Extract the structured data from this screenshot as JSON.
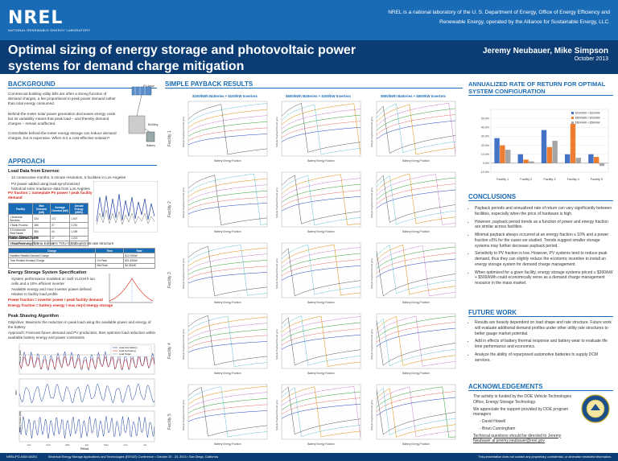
{
  "header": {
    "logo": "NREL",
    "logo_sub": "NATIONAL RENEWABLE ENERGY LABORATORY",
    "tagline": "NREL is a national laboratory of the U. S. Department of Energy, Office of Energy Efficiency and Renewable Energy, operated by the Alliance for Sustainable Energy, LLC.",
    "title": "Optimal sizing of energy storage and photovoltaic power systems for demand charge mitigation",
    "authors": "Jeremy Neubauer, Mike Simpson",
    "date": "October 2013"
  },
  "background": {
    "heading": "BACKGROUND",
    "p1": "Commercial building utility bills are often a strong function of demand charges, a fee proportional to peak power demand rather than total energy consumed.",
    "p2": "Behind-the-meter solar power generation decreases energy costs but its variability means that peak load – and thereby demand charges – remain unaffected.",
    "p3": "Controllable behind-the-meter energy storage can reduce demand charges, but is expensive. When is it a cost-effective solution?",
    "diagram_labels": [
      "PV Array",
      "Battery",
      "Building"
    ]
  },
  "approach": {
    "heading": "APPROACH",
    "load_data": "Load Data from Enernoc",
    "load_b1": "12 consecutive months, 5 minute resolution, 5 facilities in Los Angeles",
    "load_b2": "PV power added using load-synchronized historical solar irradiance data from Los Angeles",
    "pv_frac": "PV fraction = nameplate PV power / peak facility demand",
    "rate_structure": "Rate Structure",
    "rate_b1": "Southern California Edison's TOU-GS-2 option B rate structure",
    "storage_spec": "Energy Storage System Specification",
    "storage_b1": "System performance modeled on Saft VL41M li-ion cells and a 10% efficient inverter",
    "storage_b2": "Available energy and max inverter power defined relative to facility load profile",
    "power_frac": "Power fraction = inverter power / peak facility demand",
    "energy_frac": "Energy fraction = battery energy / max req'd energy storage",
    "peak_algo": "Peak Shaving Algorithm",
    "objective": "Objective: Maximize the reduction in peak load using the available power and energy of the battery",
    "approach_t": "Approach: Forecast future demand and PV production, then optimize load reduction within available battery energy and power constraints",
    "table_headers": [
      "Facility",
      "Max Demand (kW)",
      "Average Demand (kW)",
      "Annual Energy (MWh)"
    ],
    "table_rows": [
      [
        "1 Business Services",
        "334",
        "172",
        "1,507"
      ],
      [
        "2 Bank Process",
        "486",
        "37",
        "3,251"
      ],
      [
        "3 Commercial Real Estate",
        "584",
        "44",
        "1,439"
      ],
      [
        "4 Grocer/Market",
        "476",
        "17",
        "1,213"
      ],
      [
        "5 Food Processing",
        "174",
        "15",
        "1,013"
      ]
    ],
    "rate_table": [
      [
        "Charge",
        "Time",
        "Rate"
      ],
      [
        "Facilities Related Demand Charge",
        "",
        "$12.03/kW"
      ],
      [
        "Time Related Demand Charge",
        "On-Peak",
        "$21.62/kW"
      ],
      [
        "",
        "Mid-Peak",
        "$4.24/kW"
      ]
    ],
    "chart_legend": [
      "Load (w/o battery)",
      "Load (w/ battery)",
      "Load Target"
    ],
    "chart_ylabels": [
      "Power (kW)",
      "SOC",
      "Battery Power (kW)"
    ],
    "chart_xlabel": "Period",
    "chart_xticks": [
      "Jan",
      "Feb",
      "Mar",
      "Apr",
      "May",
      "Jun",
      "Jul"
    ]
  },
  "payback": {
    "heading": "SIMPLE PAYBACK RESULTS",
    "columns": [
      "$100/kWh Batteries + $100/kW Inverters",
      "$500/kWh Batteries + $100/kW Inverters",
      "$500/kWh Batteries + $500/kW Inverters"
    ],
    "rows": [
      "Facility 1",
      "Facility 2",
      "Facility 3",
      "Facility 4",
      "Facility 5"
    ],
    "xlabel": "Battery Energy Fraction",
    "ylabel": "Simple Payback Period (yrs)"
  },
  "annualized": {
    "heading": "ANNUALIZED RATE OF RETURN FOR OPTIMAL SYSTEM CONFIGURATION"
  },
  "conclusions": {
    "heading": "CONCLUSIONS",
    "items": [
      "Payback periods and annualized rate of return can vary significantly between facilities, especially when the price of hardware is high.",
      "However, payback period trends as a function of power and energy fraction are similar across facilities.",
      "Minimal payback always occurred at an energy fraction ≤ 10% and a power fraction ≤5% for the cases we studied. Trends suggest smaller storage systems may further decrease payback period.",
      "Sensitivity to PV fraction is low. However, PV systems tend to reduce peak demand, thus they can slightly reduce the economic incentive to install an energy storage system for demand charge management.",
      "When optimized for a given facility, energy storage systems priced ≤ $300/kW + $500/kWh could economically serve as a demand charge management resource in the mass market."
    ]
  },
  "future": {
    "heading": "FUTURE WORK",
    "items": [
      "Results are heavily dependent on load shape and rate structure. Future work will evaluate additional demand profiles under other utility rate structures to better gauge market potential.",
      "Add in effects of battery thermal response and battery wear to evaluate life time performance and economics.",
      "Analyze the ability of repurposed automotive batteries to supply DCM services."
    ]
  },
  "ack": {
    "heading": "ACKNOWLEDGEMENTS",
    "items": [
      "The activity is funded by the DOE Vehicle Technologies Office, Energy Storage Technology.",
      "We appreciate the support provided by DOE program managers",
      "- David Howell",
      "- Brian Cunningham",
      "Technical questions should be directed to Jeremy Neubauer at jeremy.neubauer@nrel.gov"
    ]
  },
  "footer": {
    "left": "NREL/PO-5400-60291",
    "mid": "Electrical Energy Storage Applications and Technologies (EESAT) Conference • October 20 - 23, 2013 • San Diego, California",
    "right": "This presentation does not contain any proprietary, confidential, or otherwise restricted information."
  },
  "colors": {
    "nrel_blue": "#1a6bb5",
    "dark_band": "#0b3d74",
    "highlight_red": "#d9271c"
  },
  "chart_data": [
    {
      "type": "bar",
      "title": "Annualized Rate of Return for Optimal System Configuration",
      "categories": [
        "Facility 1",
        "Facility 2",
        "Facility 3",
        "Facility 4",
        "Facility 5"
      ],
      "ylim": [
        -10,
        60
      ],
      "yticks": [
        "-10.0%",
        "0.0%",
        "10.0%",
        "20.0%",
        "30.0%",
        "40.0%",
        "50.0%"
      ],
      "series": [
        {
          "name": "$100/kWh + $100/kW",
          "color": "#4472c4",
          "values": [
            28,
            10,
            37,
            10,
            10
          ]
        },
        {
          "name": "$500/kWh + $100/kW",
          "color": "#ed7d31",
          "values": [
            20,
            4,
            18,
            44,
            7
          ]
        },
        {
          "name": "$500/kWh + $500/kW",
          "color": "#a5a5a5",
          "values": [
            15,
            2,
            25,
            6,
            -3
          ]
        }
      ],
      "legend": "top-right"
    }
  ]
}
